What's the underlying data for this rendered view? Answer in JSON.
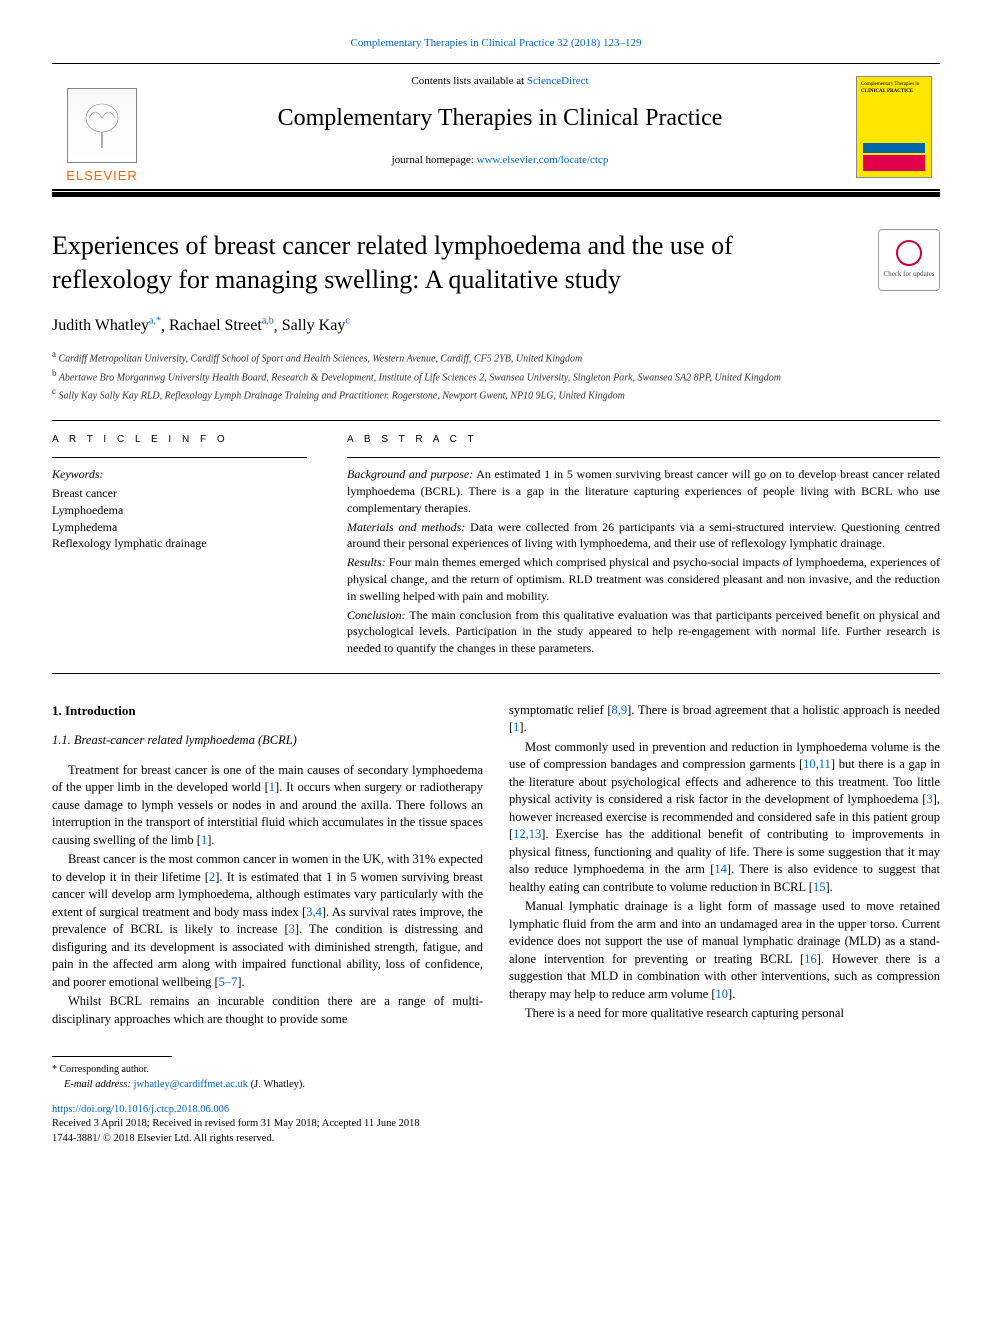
{
  "citation": "Complementary Therapies in Clinical Practice 32 (2018) 123–129",
  "masthead": {
    "contents_prefix": "Contents lists available at ",
    "contents_link": "ScienceDirect",
    "journal_name": "Complementary Therapies in Clinical Practice",
    "homepage_prefix": "journal homepage: ",
    "homepage_link": "www.elsevier.com/locate/ctcp",
    "publisher": "ELSEVIER",
    "cover_top": "Complementary Therapies in",
    "cover_mid": "CLINICAL PRACTICE"
  },
  "check_updates": "Check for updates",
  "title": "Experiences of breast cancer related lymphoedema and the use of reflexology for managing swelling: A qualitative study",
  "authors": [
    {
      "name": "Judith Whatley",
      "aff": "a,*"
    },
    {
      "name": "Rachael Street",
      "aff": "a,b"
    },
    {
      "name": "Sally Kay",
      "aff": "c"
    }
  ],
  "affiliations": [
    {
      "mark": "a",
      "text": "Cardiff Metropolitan University, Cardiff School of Sport and Health Sciences, Western Avenue, Cardiff, CF5 2YB, United Kingdom"
    },
    {
      "mark": "b",
      "text": "Abertawe Bro Morgannwg University Health Board, Research & Development, Institute of Life Sciences 2, Swansea University, Singleton Park, Swansea SA2 8PP, United Kingdom"
    },
    {
      "mark": "c",
      "text": "Sally Kay Sally Kay RLD, Reflexology Lymph Drainage Training and Practitioner. Rogerstone, Newport Gwent, NP10 9LG, United Kingdom"
    }
  ],
  "article_info_label": "A R T I C L E  I N F O",
  "abstract_label": "A B S T R A C T",
  "keywords_head": "Keywords:",
  "keywords": [
    "Breast cancer",
    "Lymphoedema",
    "Lymphedema",
    "Reflexology lymphatic drainage"
  ],
  "abstract": {
    "bg_lead": "Background and purpose:",
    "bg": " An estimated 1 in 5 women surviving breast cancer will go on to develop breast cancer related lymphoedema (BCRL). There is a gap in the literature capturing experiences of people living with BCRL who use complementary therapies.",
    "mm_lead": "Materials and methods:",
    "mm": " Data were collected from 26 participants via a semi-structured interview. Questioning centred around their personal experiences of living with lymphoedema, and their use of reflexology lymphatic drainage.",
    "res_lead": "Results:",
    "res": " Four main themes emerged which comprised physical and psycho-social impacts of lymphoedema, experiences of physical change, and the return of optimism. RLD treatment was considered pleasant and non invasive, and the reduction in swelling helped with pain and mobility.",
    "con_lead": "Conclusion:",
    "con": " The main conclusion from this qualitative evaluation was that participants perceived benefit on physical and psychological levels. Participation in the study appeared to help re-engagement with normal life. Further research is needed to quantify the changes in these parameters."
  },
  "body": {
    "h1": "1. Introduction",
    "h2": "1.1. Breast-cancer related lymphoedema (BCRL)",
    "left": [
      "Treatment for breast cancer is one of the main causes of secondary lymphoedema of the upper limb in the developed world [1]. It occurs when surgery or radiotherapy cause damage to lymph vessels or nodes in and around the axilla. There follows an interruption in the transport of interstitial fluid which accumulates in the tissue spaces causing swelling of the limb [1].",
      "Breast cancer is the most common cancer in women in the UK, with 31% expected to develop it in their lifetime [2]. It is estimated that 1 in 5 women surviving breast cancer will develop arm lymphoedema, although estimates vary particularly with the extent of surgical treatment and body mass index [3,4]. As survival rates improve, the prevalence of BCRL is likely to increase [3]. The condition is distressing and disfiguring and its development is associated with diminished strength, fatigue, and pain in the affected arm along with impaired functional ability, loss of confidence, and poorer emotional wellbeing [5–7].",
      "Whilst BCRL remains an incurable condition there are a range of multi-disciplinary approaches which are thought to provide some"
    ],
    "right": [
      "symptomatic relief [8,9]. There is broad agreement that a holistic approach is needed [1].",
      "Most commonly used in prevention and reduction in lymphoedema volume is the use of compression bandages and compression garments [10,11] but there is a gap in the literature about psychological effects and adherence to this treatment. Too little physical activity is considered a risk factor in the development of lymphoedema [3], however increased exercise is recommended and considered safe in this patient group [12,13]. Exercise has the additional benefit of contributing to improvements in physical fitness, functioning and quality of life. There is some suggestion that it may also reduce lymphoedema in the arm [14]. There is also evidence to suggest that healthy eating can contribute to volume reduction in BCRL [15].",
      "Manual lymphatic drainage is a light form of massage used to move retained lymphatic fluid from the arm and into an undamaged area in the upper torso. Current evidence does not support the use of manual lymphatic drainage (MLD) as a stand-alone intervention for preventing or treating BCRL [16]. However there is a suggestion that MLD in combination with other interventions, such as compression therapy may help to reduce arm volume [10].",
      "There is a need for more qualitative research capturing personal"
    ]
  },
  "footnote": {
    "corr": "* Corresponding author.",
    "email_label": "E-mail address:",
    "email": "jwhatley@cardiffmet.ac.uk",
    "email_paren": " (J. Whatley)."
  },
  "doi": {
    "link": "https://doi.org/10.1016/j.ctcp.2018.06.006",
    "received": "Received 3 April 2018; Received in revised form 31 May 2018; Accepted 11 June 2018",
    "issn": "1744-3881/ © 2018 Elsevier Ltd. All rights reserved."
  },
  "colors": {
    "link": "#0066cc",
    "publisher": "#ff6600",
    "cover_bg": "#ffe600",
    "cover_bar1": "#0066a8",
    "cover_bar2": "#e0004d",
    "badge_ring": "#cc0033"
  }
}
